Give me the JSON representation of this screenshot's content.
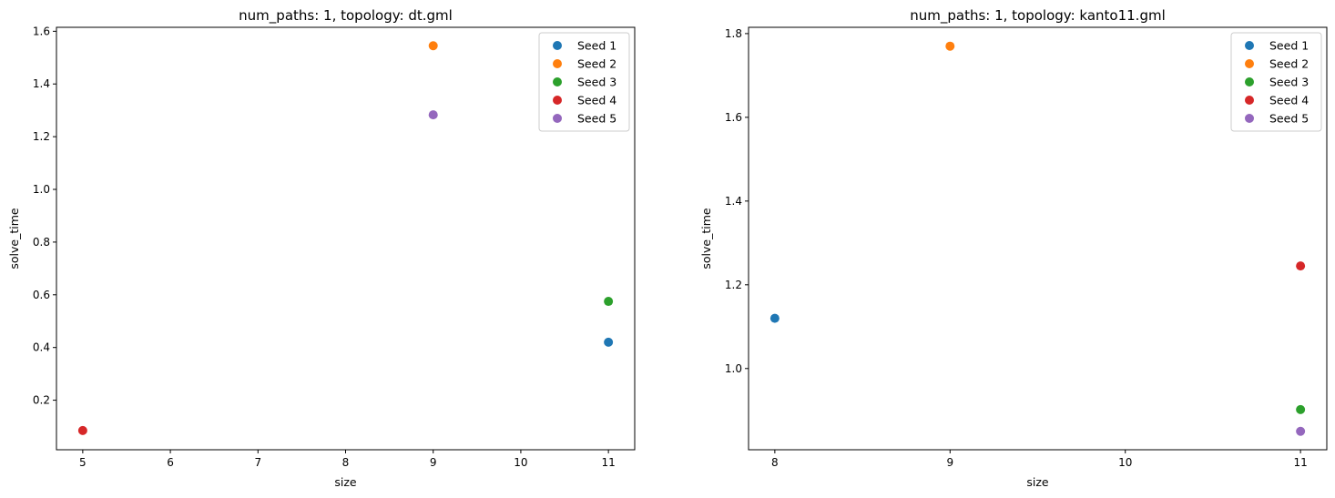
{
  "chart_data": [
    {
      "type": "scatter",
      "title": "num_paths: 1, topology: dt.gml",
      "xlabel": "size",
      "ylabel": "solve_time",
      "xlim": [
        4.7,
        11.3
      ],
      "ylim": [
        0.012,
        1.615
      ],
      "xticks": [
        5,
        6,
        7,
        8,
        9,
        10,
        11
      ],
      "yticks": [
        0.2,
        0.4,
        0.6,
        0.8,
        1.0,
        1.2,
        1.4,
        1.6
      ],
      "legend_position": "top-right",
      "series": [
        {
          "name": "Seed 1",
          "color": "#1f77b4",
          "points": [
            [
              11,
              0.42
            ]
          ]
        },
        {
          "name": "Seed 2",
          "color": "#ff7f0e",
          "points": [
            [
              9,
              1.545
            ]
          ]
        },
        {
          "name": "Seed 3",
          "color": "#2ca02c",
          "points": [
            [
              11,
              0.575
            ]
          ]
        },
        {
          "name": "Seed 4",
          "color": "#d62728",
          "points": [
            [
              5,
              0.085
            ]
          ]
        },
        {
          "name": "Seed 5",
          "color": "#9467bd",
          "points": [
            [
              9,
              1.283
            ]
          ]
        }
      ]
    },
    {
      "type": "scatter",
      "title": "num_paths: 1, topology: kanto11.gml",
      "xlabel": "size",
      "ylabel": "solve_time",
      "xlim": [
        7.85,
        11.15
      ],
      "ylim": [
        0.806,
        1.815
      ],
      "xticks": [
        8,
        9,
        10,
        11
      ],
      "yticks": [
        1.0,
        1.2,
        1.4,
        1.6,
        1.8
      ],
      "legend_position": "top-right",
      "series": [
        {
          "name": "Seed 1",
          "color": "#1f77b4",
          "points": [
            [
              8,
              1.12
            ]
          ]
        },
        {
          "name": "Seed 2",
          "color": "#ff7f0e",
          "points": [
            [
              9,
              1.77
            ]
          ]
        },
        {
          "name": "Seed 3",
          "color": "#2ca02c",
          "points": [
            [
              11,
              0.902
            ]
          ]
        },
        {
          "name": "Seed 4",
          "color": "#d62728",
          "points": [
            [
              11,
              1.245
            ]
          ]
        },
        {
          "name": "Seed 5",
          "color": "#9467bd",
          "points": [
            [
              11,
              0.85
            ]
          ]
        }
      ]
    }
  ]
}
